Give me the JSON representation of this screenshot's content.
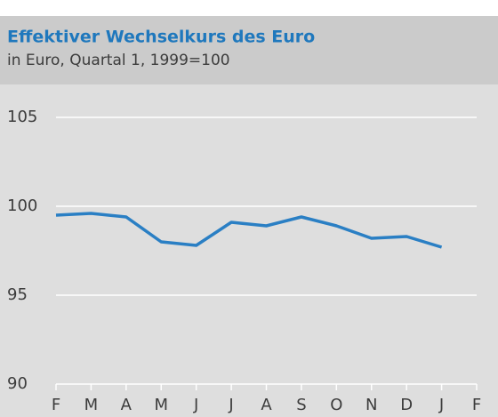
{
  "chart_data": {
    "type": "line",
    "title": "Effektiver Wechselkurs des Euro",
    "subtitle": "in Euro, Quartal 1, 1999=100",
    "categories": [
      "F",
      "M",
      "A",
      "M",
      "J",
      "J",
      "A",
      "S",
      "O",
      "N",
      "D",
      "J",
      "F"
    ],
    "series": [
      {
        "name": "Effektiver Wechselkurs",
        "color": "#2a7fc4",
        "values": [
          99.5,
          99.6,
          99.4,
          98.0,
          97.8,
          99.1,
          98.9,
          99.4,
          98.9,
          98.2,
          98.3,
          97.7,
          null
        ]
      }
    ],
    "ylim": [
      90,
      105.5
    ],
    "yticks": [
      90,
      95,
      100,
      105
    ],
    "grid": true
  }
}
